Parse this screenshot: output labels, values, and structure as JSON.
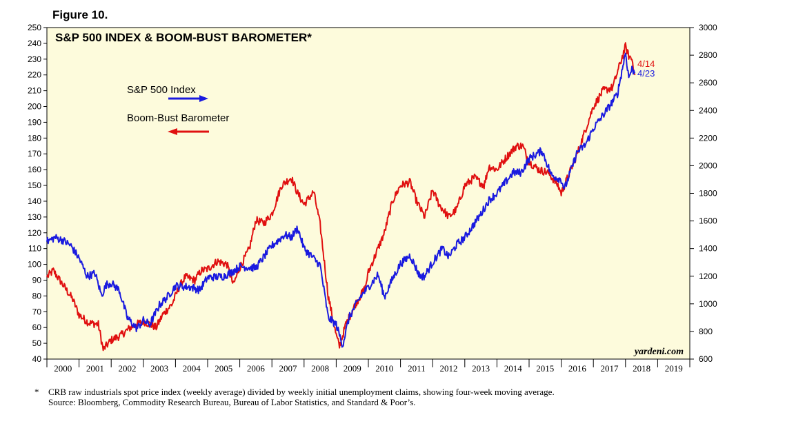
{
  "figure_label": "Figure 10.",
  "colors": {
    "sp500": "#1a1adf",
    "boom_bust": "#e01010",
    "plot_bg": "#fdfbdc"
  },
  "chart_data": {
    "type": "line",
    "title": "S&P 500 INDEX & BOOM-BUST BAROMETER*",
    "x_range": [
      2000,
      2020
    ],
    "x_tick_labels": [
      "2000",
      "2001",
      "2002",
      "2003",
      "2004",
      "2005",
      "2006",
      "2007",
      "2008",
      "2009",
      "2010",
      "2011",
      "2012",
      "2013",
      "2014",
      "2015",
      "2016",
      "2017",
      "2018",
      "2019"
    ],
    "left_axis": {
      "range": [
        40,
        250
      ],
      "ticks": [
        40,
        50,
        60,
        70,
        80,
        90,
        100,
        110,
        120,
        130,
        140,
        150,
        160,
        170,
        180,
        190,
        200,
        210,
        220,
        230,
        240,
        250
      ]
    },
    "right_axis": {
      "range": [
        600,
        3000
      ],
      "ticks": [
        600,
        800,
        1000,
        1200,
        1400,
        1600,
        1800,
        2000,
        2200,
        2400,
        2600,
        2800,
        3000
      ]
    },
    "series": [
      {
        "name": "S&P 500 Index",
        "axis": "right",
        "color": "#1a1adf",
        "end_label": "4/23",
        "points": [
          [
            2000.0,
            1450
          ],
          [
            2000.25,
            1480
          ],
          [
            2000.5,
            1460
          ],
          [
            2000.75,
            1420
          ],
          [
            2001.0,
            1330
          ],
          [
            2001.25,
            1200
          ],
          [
            2001.5,
            1220
          ],
          [
            2001.7,
            1060
          ],
          [
            2001.85,
            1140
          ],
          [
            2002.0,
            1150
          ],
          [
            2002.25,
            1100
          ],
          [
            2002.5,
            900
          ],
          [
            2002.8,
            820
          ],
          [
            2003.0,
            880
          ],
          [
            2003.2,
            850
          ],
          [
            2003.5,
            990
          ],
          [
            2003.75,
            1050
          ],
          [
            2004.0,
            1130
          ],
          [
            2004.5,
            1120
          ],
          [
            2004.75,
            1100
          ],
          [
            2005.0,
            1190
          ],
          [
            2005.5,
            1200
          ],
          [
            2005.75,
            1230
          ],
          [
            2006.0,
            1270
          ],
          [
            2006.5,
            1260
          ],
          [
            2006.75,
            1340
          ],
          [
            2007.0,
            1420
          ],
          [
            2007.4,
            1500
          ],
          [
            2007.6,
            1480
          ],
          [
            2007.8,
            1550
          ],
          [
            2008.0,
            1400
          ],
          [
            2008.5,
            1280
          ],
          [
            2008.75,
            900
          ],
          [
            2009.0,
            850
          ],
          [
            2009.2,
            700
          ],
          [
            2009.4,
            900
          ],
          [
            2009.75,
            1050
          ],
          [
            2010.0,
            1120
          ],
          [
            2010.3,
            1210
          ],
          [
            2010.5,
            1050
          ],
          [
            2010.75,
            1180
          ],
          [
            2011.0,
            1290
          ],
          [
            2011.3,
            1350
          ],
          [
            2011.6,
            1200
          ],
          [
            2011.75,
            1200
          ],
          [
            2012.0,
            1300
          ],
          [
            2012.3,
            1400
          ],
          [
            2012.5,
            1340
          ],
          [
            2012.75,
            1430
          ],
          [
            2013.0,
            1480
          ],
          [
            2013.5,
            1650
          ],
          [
            2013.75,
            1750
          ],
          [
            2014.0,
            1800
          ],
          [
            2014.5,
            1950
          ],
          [
            2014.75,
            1950
          ],
          [
            2015.0,
            2050
          ],
          [
            2015.4,
            2110
          ],
          [
            2015.7,
            1930
          ],
          [
            2016.0,
            1900
          ],
          [
            2016.1,
            1830
          ],
          [
            2016.5,
            2100
          ],
          [
            2016.75,
            2150
          ],
          [
            2017.0,
            2270
          ],
          [
            2017.5,
            2430
          ],
          [
            2017.75,
            2520
          ],
          [
            2018.0,
            2820
          ],
          [
            2018.1,
            2640
          ],
          [
            2018.2,
            2700
          ],
          [
            2018.3,
            2670
          ]
        ]
      },
      {
        "name": "Boom-Bust Barometer",
        "axis": "left",
        "color": "#e01010",
        "end_label": "4/14",
        "points": [
          [
            2000.0,
            92
          ],
          [
            2000.2,
            96
          ],
          [
            2000.4,
            90
          ],
          [
            2000.6,
            84
          ],
          [
            2000.8,
            78
          ],
          [
            2001.0,
            68
          ],
          [
            2001.3,
            63
          ],
          [
            2001.6,
            62
          ],
          [
            2001.75,
            46
          ],
          [
            2002.0,
            52
          ],
          [
            2002.3,
            55
          ],
          [
            2002.6,
            60
          ],
          [
            2003.0,
            64
          ],
          [
            2003.4,
            60
          ],
          [
            2003.6,
            68
          ],
          [
            2003.9,
            75
          ],
          [
            2004.1,
            85
          ],
          [
            2004.3,
            92
          ],
          [
            2004.6,
            90
          ],
          [
            2004.8,
            96
          ],
          [
            2005.0,
            97
          ],
          [
            2005.3,
            102
          ],
          [
            2005.6,
            100
          ],
          [
            2005.8,
            87
          ],
          [
            2006.0,
            98
          ],
          [
            2006.3,
            110
          ],
          [
            2006.5,
            128
          ],
          [
            2006.75,
            126
          ],
          [
            2007.0,
            132
          ],
          [
            2007.3,
            150
          ],
          [
            2007.6,
            155
          ],
          [
            2007.8,
            145
          ],
          [
            2008.0,
            138
          ],
          [
            2008.3,
            146
          ],
          [
            2008.5,
            125
          ],
          [
            2008.75,
            80
          ],
          [
            2009.0,
            55
          ],
          [
            2009.1,
            48
          ],
          [
            2009.3,
            62
          ],
          [
            2009.6,
            75
          ],
          [
            2009.9,
            85
          ],
          [
            2010.0,
            95
          ],
          [
            2010.3,
            110
          ],
          [
            2010.5,
            120
          ],
          [
            2010.75,
            140
          ],
          [
            2011.0,
            150
          ],
          [
            2011.3,
            152
          ],
          [
            2011.5,
            140
          ],
          [
            2011.75,
            130
          ],
          [
            2011.9,
            140
          ],
          [
            2012.0,
            147
          ],
          [
            2012.2,
            138
          ],
          [
            2012.5,
            130
          ],
          [
            2012.75,
            135
          ],
          [
            2013.0,
            150
          ],
          [
            2013.3,
            155
          ],
          [
            2013.6,
            150
          ],
          [
            2013.75,
            162
          ],
          [
            2014.0,
            160
          ],
          [
            2014.3,
            168
          ],
          [
            2014.6,
            175
          ],
          [
            2014.8,
            175
          ],
          [
            2015.0,
            165
          ],
          [
            2015.3,
            160
          ],
          [
            2015.6,
            158
          ],
          [
            2015.9,
            150
          ],
          [
            2016.0,
            145
          ],
          [
            2016.3,
            160
          ],
          [
            2016.5,
            170
          ],
          [
            2016.75,
            185
          ],
          [
            2017.0,
            200
          ],
          [
            2017.3,
            210
          ],
          [
            2017.6,
            212
          ],
          [
            2017.8,
            225
          ],
          [
            2018.0,
            238
          ],
          [
            2018.1,
            232
          ],
          [
            2018.2,
            230
          ],
          [
            2018.3,
            220
          ]
        ]
      }
    ],
    "legend": [
      {
        "label": "S&P 500 Index",
        "arrow": "right",
        "color": "#1a1adf"
      },
      {
        "label": "Boom-Bust Barometer",
        "arrow": "left",
        "color": "#e01010"
      }
    ],
    "credit": "yardeni.com"
  },
  "footnote": {
    "marker": "*",
    "line1": "CRB raw industrials spot price index (weekly average) divided by weekly initial unemployment claims, showing four-week moving average.",
    "line2": "Source: Bloomberg, Commodity Research Bureau, Bureau of Labor Statistics, and Standard & Poor’s."
  }
}
